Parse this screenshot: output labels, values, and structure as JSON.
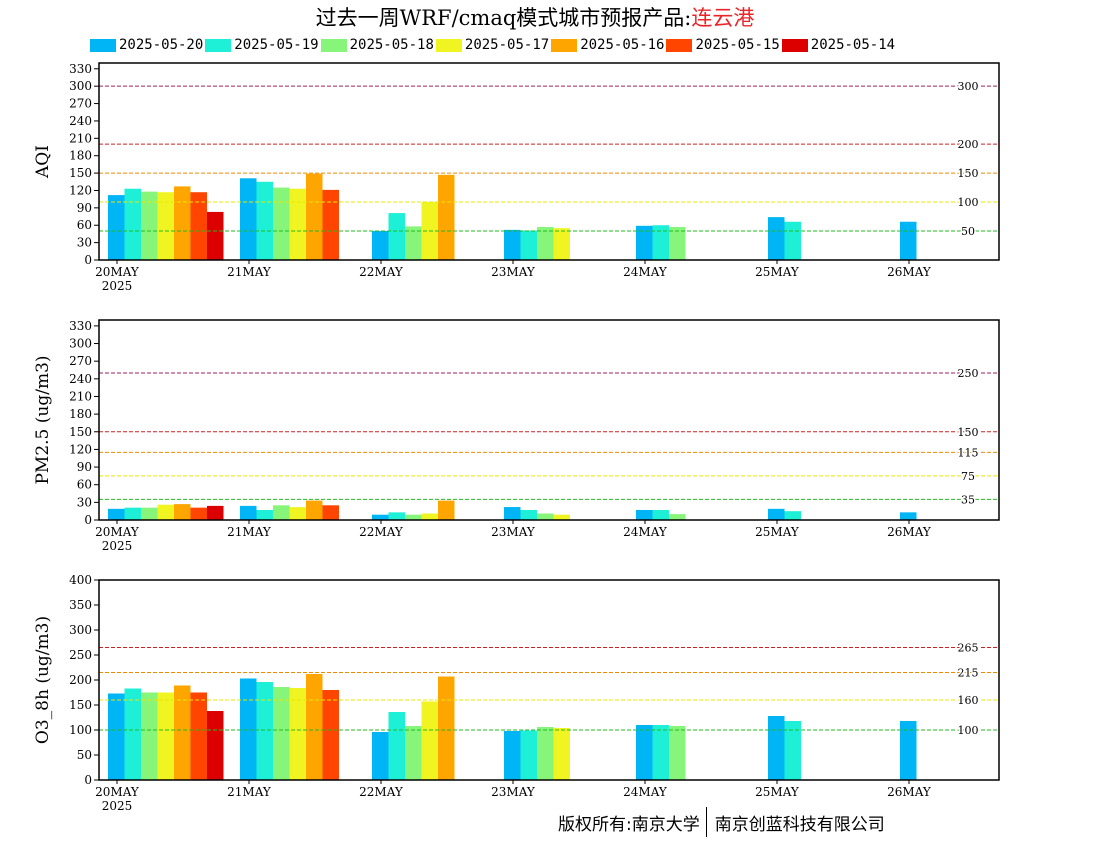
{
  "title": {
    "prefix": "过去一周WRF/cmaq模式城市预报产品:",
    "city": "连云港"
  },
  "footer": {
    "left": "版权所有:南京大学",
    "right": "南京创蓝科技有限公司"
  },
  "chart_data": [
    {
      "type": "bar",
      "ylabel": "AQI",
      "ylim": [
        0,
        340
      ],
      "yticks": [
        0,
        30,
        60,
        90,
        120,
        150,
        180,
        210,
        240,
        270,
        300,
        330
      ],
      "xticklabels": [
        "20MAY",
        "21MAY",
        "22MAY",
        "23MAY",
        "24MAY",
        "25MAY",
        "26MAY"
      ],
      "xsublabel": "2025",
      "reference_lines": [
        {
          "value": 300,
          "label": "300",
          "color": "#a0205a"
        },
        {
          "value": 200,
          "label": "200",
          "color": "#cc2222"
        },
        {
          "value": 150,
          "label": "150",
          "color": "#ee8a00"
        },
        {
          "value": 100,
          "label": "100",
          "color": "#e8e800"
        },
        {
          "value": 50,
          "label": "50",
          "color": "#22bb22"
        }
      ],
      "series": [
        {
          "name": "2025-05-20",
          "color": "#00b5f5",
          "values": [
            112,
            141,
            50,
            52,
            59,
            74,
            66
          ]
        },
        {
          "name": "2025-05-19",
          "color": "#1ef0d8",
          "values": [
            123,
            135,
            81,
            51,
            60,
            66,
            null
          ]
        },
        {
          "name": "2025-05-18",
          "color": "#86f57a",
          "values": [
            118,
            125,
            58,
            57,
            57,
            null,
            null
          ]
        },
        {
          "name": "2025-05-17",
          "color": "#f0f522",
          "values": [
            117,
            123,
            100,
            55,
            null,
            null,
            null
          ]
        },
        {
          "name": "2025-05-16",
          "color": "#ffa500",
          "values": [
            127,
            149,
            147,
            null,
            null,
            null,
            null
          ]
        },
        {
          "name": "2025-05-15",
          "color": "#ff4500",
          "values": [
            117,
            121,
            null,
            null,
            null,
            null,
            null
          ]
        },
        {
          "name": "2025-05-14",
          "color": "#dd0000",
          "values": [
            83,
            null,
            null,
            null,
            null,
            null,
            null
          ]
        }
      ]
    },
    {
      "type": "bar",
      "ylabel": "PM2.5 (ug/m3)",
      "ylim": [
        0,
        340
      ],
      "yticks": [
        0,
        30,
        60,
        90,
        120,
        150,
        180,
        210,
        240,
        270,
        300,
        330
      ],
      "xticklabels": [
        "20MAY",
        "21MAY",
        "22MAY",
        "23MAY",
        "24MAY",
        "25MAY",
        "26MAY"
      ],
      "xsublabel": "2025",
      "reference_lines": [
        {
          "value": 250,
          "label": "250",
          "color": "#a0205a"
        },
        {
          "value": 150,
          "label": "150",
          "color": "#cc2222"
        },
        {
          "value": 115,
          "label": "115",
          "color": "#ee8a00"
        },
        {
          "value": 75,
          "label": "75",
          "color": "#e8e800"
        },
        {
          "value": 35,
          "label": "35",
          "color": "#22bb22"
        }
      ],
      "series": [
        {
          "name": "2025-05-20",
          "color": "#00b5f5",
          "values": [
            19,
            24,
            9,
            22,
            17,
            19,
            13
          ]
        },
        {
          "name": "2025-05-19",
          "color": "#1ef0d8",
          "values": [
            21,
            17,
            13,
            17,
            17,
            15,
            null
          ]
        },
        {
          "name": "2025-05-18",
          "color": "#86f57a",
          "values": [
            21,
            25,
            9,
            11,
            10,
            null,
            null
          ]
        },
        {
          "name": "2025-05-17",
          "color": "#f0f522",
          "values": [
            26,
            22,
            11,
            9,
            null,
            null,
            null
          ]
        },
        {
          "name": "2025-05-16",
          "color": "#ffa500",
          "values": [
            27,
            33,
            33,
            null,
            null,
            null,
            null
          ]
        },
        {
          "name": "2025-05-15",
          "color": "#ff4500",
          "values": [
            21,
            25,
            null,
            null,
            null,
            null,
            null
          ]
        },
        {
          "name": "2025-05-14",
          "color": "#dd0000",
          "values": [
            24,
            null,
            null,
            null,
            null,
            null,
            null
          ]
        }
      ]
    },
    {
      "type": "bar",
      "ylabel": "O3_8h (ug/m3)",
      "ylim": [
        0,
        400
      ],
      "yticks": [
        0,
        50,
        100,
        150,
        200,
        250,
        300,
        350,
        400
      ],
      "xticklabels": [
        "20MAY",
        "21MAY",
        "22MAY",
        "23MAY",
        "24MAY",
        "25MAY",
        "26MAY"
      ],
      "xsublabel": "2025",
      "reference_lines": [
        {
          "value": 265,
          "label": "265",
          "color": "#cc2222"
        },
        {
          "value": 215,
          "label": "215",
          "color": "#ee8a00"
        },
        {
          "value": 160,
          "label": "160",
          "color": "#e8e800"
        },
        {
          "value": 100,
          "label": "100",
          "color": "#22bb22"
        }
      ],
      "series": [
        {
          "name": "2025-05-20",
          "color": "#00b5f5",
          "values": [
            173,
            203,
            96,
            98,
            110,
            128,
            118
          ]
        },
        {
          "name": "2025-05-19",
          "color": "#1ef0d8",
          "values": [
            183,
            196,
            136,
            99,
            110,
            118,
            null
          ]
        },
        {
          "name": "2025-05-18",
          "color": "#86f57a",
          "values": [
            175,
            186,
            108,
            106,
            108,
            null,
            null
          ]
        },
        {
          "name": "2025-05-17",
          "color": "#f0f522",
          "values": [
            175,
            184,
            157,
            104,
            null,
            null,
            null
          ]
        },
        {
          "name": "2025-05-16",
          "color": "#ffa500",
          "values": [
            189,
            212,
            207,
            null,
            null,
            null,
            null
          ]
        },
        {
          "name": "2025-05-15",
          "color": "#ff4500",
          "values": [
            175,
            180,
            null,
            null,
            null,
            null,
            null
          ]
        },
        {
          "name": "2025-05-14",
          "color": "#dd0000",
          "values": [
            138,
            null,
            null,
            null,
            null,
            null,
            null
          ]
        }
      ]
    }
  ]
}
